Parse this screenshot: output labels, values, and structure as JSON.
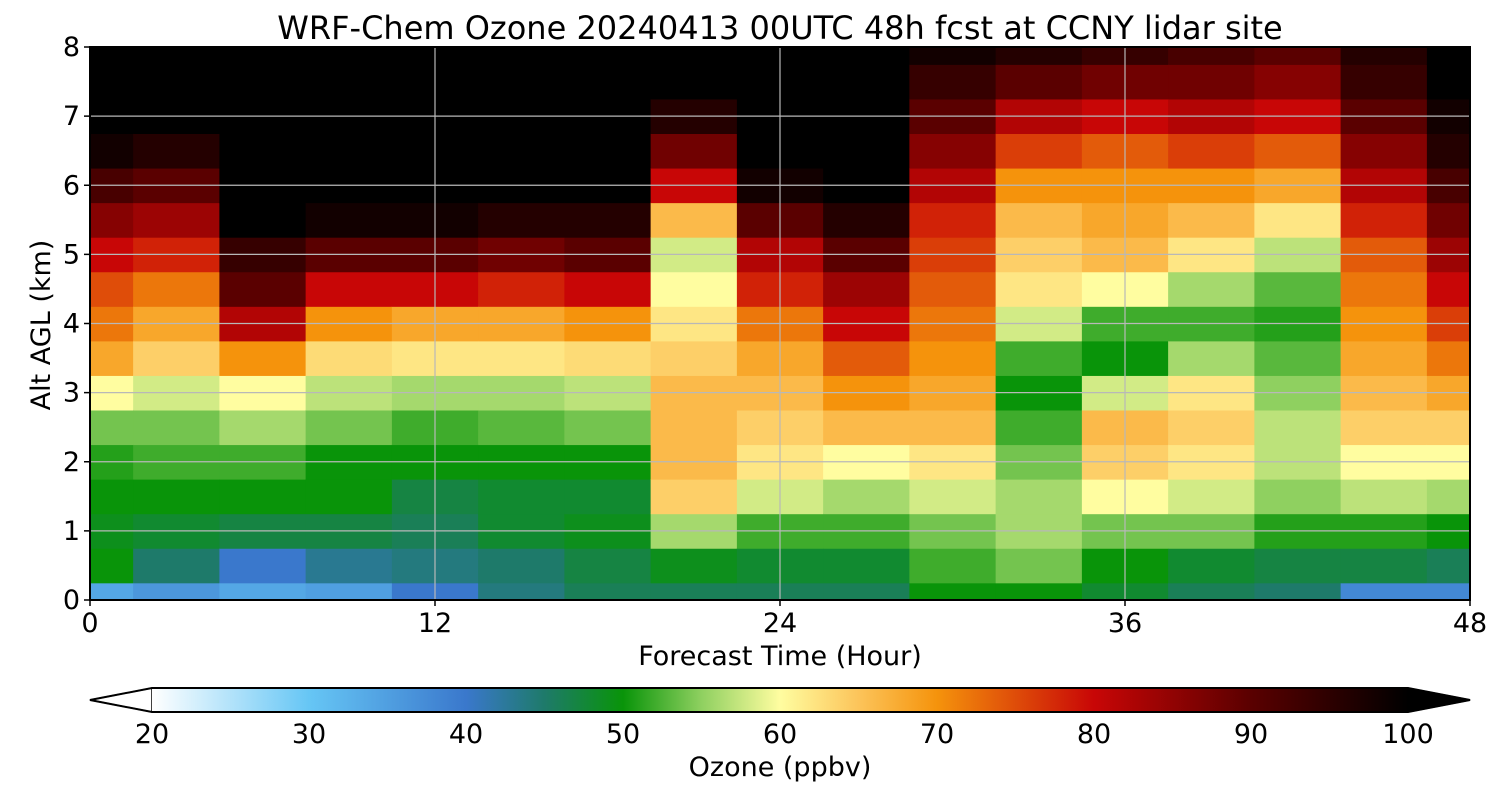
{
  "chart_data": {
    "type": "heatmap",
    "title": "WRF-Chem Ozone  20240413 00UTC 48h fcst at CCNY lidar site",
    "xlabel": "Forecast Time (Hour)",
    "ylabel": "Alt AGL (km)",
    "xlim": [
      0,
      48
    ],
    "ylim": [
      0,
      8
    ],
    "xticks": [
      0,
      12,
      24,
      36,
      48
    ],
    "yticks": [
      0,
      1,
      2,
      3,
      4,
      5,
      6,
      7,
      8
    ],
    "grid": true,
    "z_units": "ppbv",
    "colorbar": {
      "label": "Ozone  (ppbv)",
      "min": 20,
      "max": 100,
      "extend": "both",
      "ticks": [
        20,
        30,
        40,
        50,
        60,
        70,
        80,
        90,
        100
      ],
      "color_stops": [
        {
          "value": 20,
          "color": "#ffffff"
        },
        {
          "value": 30,
          "color": "#66c6f5"
        },
        {
          "value": 40,
          "color": "#3a78cc"
        },
        {
          "value": 45,
          "color": "#1e7a6a"
        },
        {
          "value": 50,
          "color": "#099409"
        },
        {
          "value": 55,
          "color": "#8fd060"
        },
        {
          "value": 60,
          "color": "#fffda0"
        },
        {
          "value": 65,
          "color": "#fcc45a"
        },
        {
          "value": 70,
          "color": "#f5930c"
        },
        {
          "value": 80,
          "color": "#c80606"
        },
        {
          "value": 90,
          "color": "#5a0000"
        },
        {
          "value": 100,
          "color": "#000000"
        }
      ]
    },
    "x_hours": [
      0,
      3,
      6,
      9,
      12,
      15,
      18,
      21,
      24,
      27,
      30,
      33,
      36,
      39,
      42,
      45,
      48
    ],
    "z_altitudes_km": [
      0,
      0.5,
      1,
      1.5,
      2,
      2.5,
      3,
      3.5,
      4,
      4.5,
      5,
      5.5,
      6,
      6.5,
      7,
      7.5,
      8
    ],
    "values_ppbv": [
      [
        34,
        50,
        49,
        50,
        51,
        54,
        60,
        68,
        72,
        75,
        80,
        86,
        92,
        98,
        100,
        100,
        100
      ],
      [
        36,
        45,
        48,
        50,
        52,
        54,
        58,
        64,
        68,
        72,
        78,
        84,
        90,
        96,
        100,
        100,
        100
      ],
      [
        34,
        40,
        47,
        50,
        52,
        56,
        60,
        70,
        82,
        90,
        94,
        100,
        100,
        100,
        100,
        100,
        100
      ],
      [
        35,
        43,
        47,
        50,
        50,
        54,
        57,
        63,
        70,
        80,
        90,
        98,
        100,
        100,
        100,
        100,
        100
      ],
      [
        40,
        44,
        46,
        47,
        50,
        52,
        56,
        62,
        68,
        80,
        90,
        98,
        100,
        100,
        100,
        100,
        100
      ],
      [
        44,
        45,
        48,
        48,
        50,
        53,
        56,
        62,
        68,
        78,
        88,
        96,
        100,
        100,
        100,
        100,
        100
      ],
      [
        46,
        47,
        49,
        48,
        50,
        54,
        57,
        63,
        70,
        80,
        90,
        96,
        100,
        100,
        100,
        100,
        100
      ],
      [
        46,
        49,
        56,
        64,
        66,
        66,
        66,
        64,
        62,
        60,
        58,
        66,
        80,
        88,
        96,
        100,
        100
      ],
      [
        46,
        48,
        52,
        58,
        62,
        64,
        66,
        68,
        72,
        78,
        82,
        90,
        98,
        100,
        100,
        100,
        100
      ],
      [
        46,
        48,
        52,
        56,
        60,
        66,
        70,
        74,
        80,
        84,
        90,
        96,
        100,
        100,
        100,
        100,
        100
      ],
      [
        50,
        52,
        54,
        58,
        62,
        66,
        68,
        70,
        72,
        74,
        76,
        78,
        82,
        86,
        90,
        94,
        98
      ],
      [
        50,
        54,
        56,
        56,
        54,
        52,
        50,
        52,
        58,
        62,
        64,
        66,
        70,
        76,
        82,
        90,
        96
      ],
      [
        48,
        50,
        54,
        60,
        64,
        66,
        58,
        50,
        52,
        60,
        66,
        68,
        70,
        74,
        80,
        88,
        94
      ],
      [
        46,
        48,
        54,
        58,
        62,
        64,
        62,
        56,
        52,
        56,
        62,
        66,
        70,
        76,
        82,
        88,
        92
      ],
      [
        45,
        47,
        51,
        55,
        57,
        57,
        55,
        53,
        51,
        53,
        57,
        62,
        68,
        74,
        80,
        86,
        90
      ],
      [
        38,
        47,
        51,
        57,
        60,
        64,
        66,
        68,
        70,
        72,
        74,
        78,
        82,
        86,
        90,
        94,
        96
      ],
      [
        38,
        46,
        50,
        56,
        60,
        64,
        68,
        72,
        76,
        80,
        84,
        88,
        92,
        96,
        98,
        100,
        100
      ]
    ]
  }
}
